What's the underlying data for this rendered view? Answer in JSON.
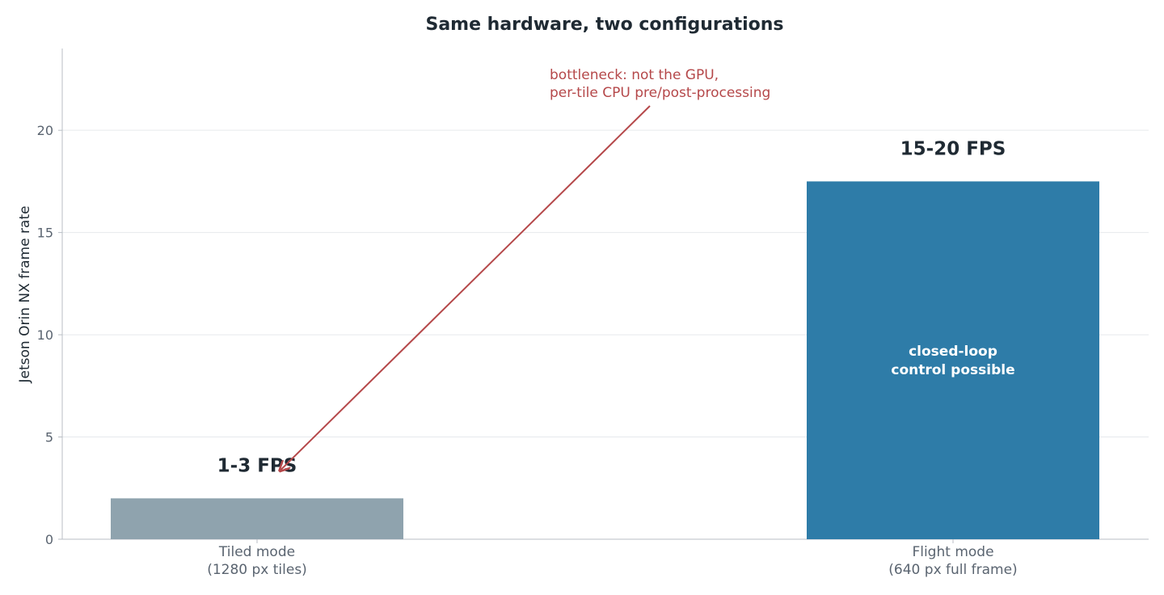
{
  "chart_data": {
    "type": "bar",
    "title": "Same hardware, two configurations",
    "xlabel": "",
    "ylabel": "Jetson Orin NX frame rate",
    "ylim": [
      0,
      24
    ],
    "yticks": [
      0,
      5,
      10,
      15,
      20
    ],
    "grid": "horizontal",
    "categories": [
      [
        "Tiled mode",
        "(1280 px tiles)"
      ],
      [
        "Flight mode",
        "(640 px full frame)"
      ]
    ],
    "values": [
      2,
      17.5
    ],
    "value_labels": [
      "1-3 FPS",
      "15-20 FPS"
    ],
    "bar_inner_labels": [
      [],
      [
        "closed-loop",
        "control possible"
      ]
    ],
    "colors": [
      "#8fa3ae",
      "#2e7ca8"
    ],
    "annotation": {
      "lines": [
        "bottleneck: not the GPU,",
        "per-tile CPU pre/post-processing"
      ],
      "color": "#b5484a",
      "points_to_category": 0,
      "points_to_value": 3.5
    }
  }
}
